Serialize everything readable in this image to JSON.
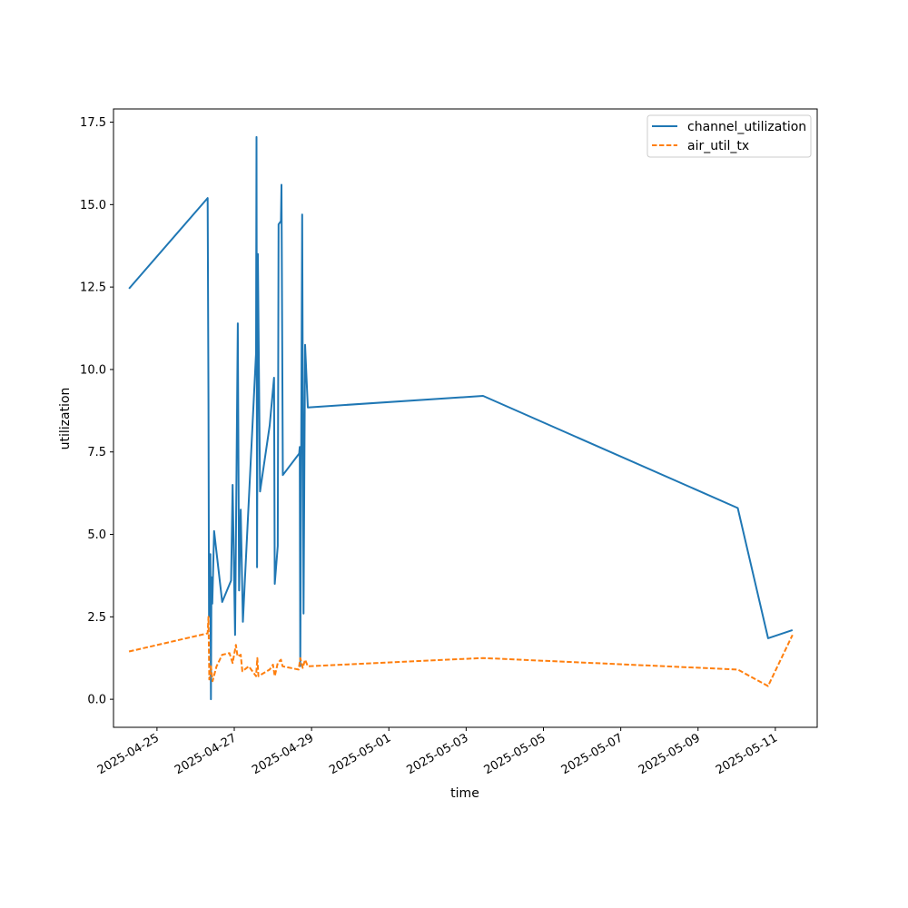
{
  "chart_data": {
    "type": "line",
    "title": "",
    "xlabel": "time",
    "ylabel": "utilization",
    "xlim": [
      "2025-04-23T21:00",
      "2025-05-12T02:00"
    ],
    "ylim": [
      -0.85,
      17.9
    ],
    "x_ticks": [
      "2025-04-25",
      "2025-04-27",
      "2025-04-29",
      "2025-05-01",
      "2025-05-03",
      "2025-05-05",
      "2025-05-07",
      "2025-05-09",
      "2025-05-11"
    ],
    "y_ticks": [
      "0.0",
      "2.5",
      "5.0",
      "7.5",
      "10.0",
      "12.5",
      "15.0",
      "17.5"
    ],
    "grid": false,
    "legend_position": "top-right",
    "series": [
      {
        "name": "channel_utilization",
        "color": "#1f77b4",
        "dash": "solid",
        "points": [
          [
            "2025-04-24T06:40",
            12.45
          ],
          [
            "2025-04-26T07:30",
            15.2
          ],
          [
            "2025-04-26T08:00",
            9.0
          ],
          [
            "2025-04-26T08:20",
            2.5
          ],
          [
            "2025-04-26T09:10",
            4.4
          ],
          [
            "2025-04-26T09:30",
            0.0
          ],
          [
            "2025-04-26T09:50",
            3.7
          ],
          [
            "2025-04-26T10:20",
            2.9
          ],
          [
            "2025-04-26T11:30",
            5.1
          ],
          [
            "2025-04-26T16:30",
            2.95
          ],
          [
            "2025-04-26T22:00",
            3.6
          ],
          [
            "2025-04-26T23:00",
            6.5
          ],
          [
            "2025-04-27T00:30",
            1.95
          ],
          [
            "2025-04-27T02:10",
            11.4
          ],
          [
            "2025-04-27T03:00",
            3.3
          ],
          [
            "2025-04-27T04:00",
            5.75
          ],
          [
            "2025-04-27T05:20",
            2.35
          ],
          [
            "2025-04-27T06:30",
            3.5
          ],
          [
            "2025-04-27T13:30",
            10.5
          ],
          [
            "2025-04-27T13:50",
            17.05
          ],
          [
            "2025-04-27T14:10",
            4.0
          ],
          [
            "2025-04-27T14:40",
            13.5
          ],
          [
            "2025-04-27T16:00",
            6.3
          ],
          [
            "2025-04-27T22:00",
            8.3
          ],
          [
            "2025-04-28T00:40",
            9.75
          ],
          [
            "2025-04-28T01:10",
            3.5
          ],
          [
            "2025-04-28T03:00",
            4.65
          ],
          [
            "2025-04-28T03:30",
            14.4
          ],
          [
            "2025-04-28T05:00",
            14.5
          ],
          [
            "2025-04-28T05:20",
            15.6
          ],
          [
            "2025-04-28T06:10",
            6.8
          ],
          [
            "2025-04-28T16:20",
            7.45
          ],
          [
            "2025-04-28T16:40",
            7.65
          ],
          [
            "2025-04-28T17:00",
            1.0
          ],
          [
            "2025-04-28T18:10",
            14.7
          ],
          [
            "2025-04-28T19:00",
            2.6
          ],
          [
            "2025-04-28T20:00",
            10.75
          ],
          [
            "2025-04-28T21:40",
            8.85
          ],
          [
            "2025-05-03T10:30",
            9.2
          ],
          [
            "2025-05-10T00:40",
            5.8
          ],
          [
            "2025-05-10T19:30",
            1.85
          ],
          [
            "2025-05-11T10:40",
            2.1
          ]
        ]
      },
      {
        "name": "air_util_tx",
        "color": "#ff7f0e",
        "dash": "5.5,2.4",
        "points": [
          [
            "2025-04-24T06:40",
            1.45
          ],
          [
            "2025-04-26T07:30",
            2.0
          ],
          [
            "2025-04-26T08:00",
            2.5
          ],
          [
            "2025-04-26T08:30",
            0.6
          ],
          [
            "2025-04-26T09:30",
            1.0
          ],
          [
            "2025-04-26T10:30",
            0.55
          ],
          [
            "2025-04-26T13:00",
            1.0
          ],
          [
            "2025-04-26T16:30",
            1.35
          ],
          [
            "2025-04-26T21:00",
            1.4
          ],
          [
            "2025-04-26T23:00",
            1.1
          ],
          [
            "2025-04-27T01:00",
            1.65
          ],
          [
            "2025-04-27T02:00",
            1.3
          ],
          [
            "2025-04-27T04:00",
            1.35
          ],
          [
            "2025-04-27T05:00",
            0.85
          ],
          [
            "2025-04-27T09:00",
            1.0
          ],
          [
            "2025-04-27T13:30",
            0.7
          ],
          [
            "2025-04-27T14:20",
            1.25
          ],
          [
            "2025-04-27T15:00",
            0.7
          ],
          [
            "2025-04-27T22:00",
            0.9
          ],
          [
            "2025-04-28T00:00",
            1.05
          ],
          [
            "2025-04-28T01:10",
            0.7
          ],
          [
            "2025-04-28T03:00",
            1.1
          ],
          [
            "2025-04-28T05:00",
            1.2
          ],
          [
            "2025-04-28T06:00",
            1.0
          ],
          [
            "2025-04-28T16:00",
            0.9
          ],
          [
            "2025-04-28T17:00",
            1.25
          ],
          [
            "2025-04-28T18:30",
            0.95
          ],
          [
            "2025-04-28T20:00",
            1.2
          ],
          [
            "2025-04-28T21:40",
            1.0
          ],
          [
            "2025-05-03T10:30",
            1.25
          ],
          [
            "2025-05-10T00:40",
            0.9
          ],
          [
            "2025-05-10T19:30",
            0.4
          ],
          [
            "2025-05-11T10:40",
            1.95
          ]
        ]
      }
    ]
  }
}
